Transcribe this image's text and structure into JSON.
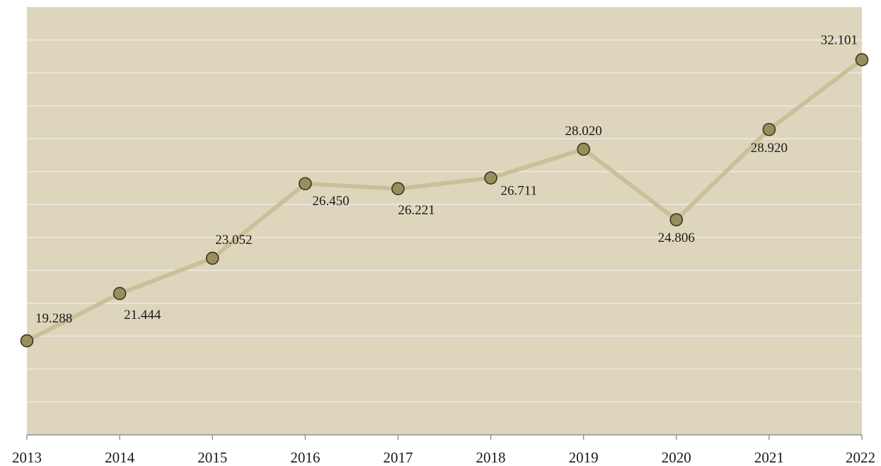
{
  "chart_data": {
    "type": "line",
    "title": "",
    "xlabel": "",
    "ylabel": "",
    "categories": [
      "2013",
      "2014",
      "2015",
      "2016",
      "2017",
      "2018",
      "2019",
      "2020",
      "2021",
      "2022"
    ],
    "series": [
      {
        "values": [
          19.288,
          21.444,
          23.052,
          26.45,
          26.221,
          26.711,
          28.02,
          24.806,
          28.92,
          32.101
        ],
        "labels": [
          "19.288",
          "21.444",
          "23.052",
          "26.450",
          "26.221",
          "26.711",
          "28.020",
          "24.806",
          "28.920",
          "32.101"
        ]
      }
    ],
    "ylim": [
      15,
      34.5
    ],
    "y_axis_visible": false,
    "grid": true,
    "legend": "none",
    "colors": {
      "plot_background": "#ddd6bc",
      "line": "#c9c09a",
      "marker_fill": "#9a8f5c",
      "marker_stroke": "#3a3520"
    }
  }
}
